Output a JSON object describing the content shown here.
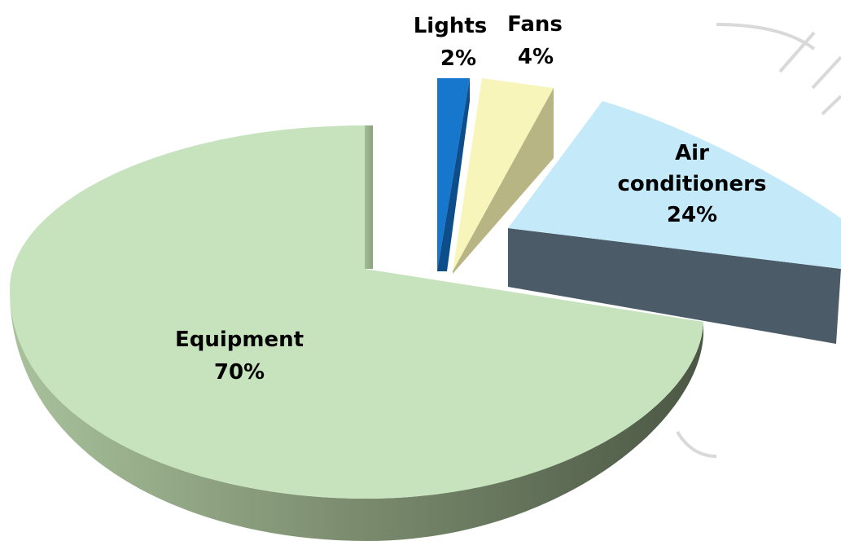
{
  "chart_data": {
    "type": "pie",
    "style": "3d-exploded",
    "slices": [
      {
        "key": "equipment",
        "label": "Equipment",
        "pct_label": "70%",
        "value": 70,
        "top_color": "#c6e3bd",
        "side_color": "#8da27f",
        "side_color_dark": "#4b5744"
      },
      {
        "key": "lights",
        "label": "Lights",
        "pct_label": "2%",
        "value": 2,
        "top_color": "#1677cc",
        "side_color": "#0c4d8a",
        "side_color_dark": "#0c4d8a"
      },
      {
        "key": "fans",
        "label": "Fans",
        "pct_label": "4%",
        "value": 4,
        "top_color": "#f7f5b9",
        "side_color": "#c3c08c",
        "side_color_dark": "#b8b584"
      },
      {
        "key": "air_conditioners",
        "label_lines": [
          "Air",
          "conditioners"
        ],
        "pct_label": "24%",
        "value": 24,
        "top_color": "#c4e9f9",
        "side_color": "#4b5b68",
        "side_color_dark": "#4b5b68"
      }
    ]
  }
}
